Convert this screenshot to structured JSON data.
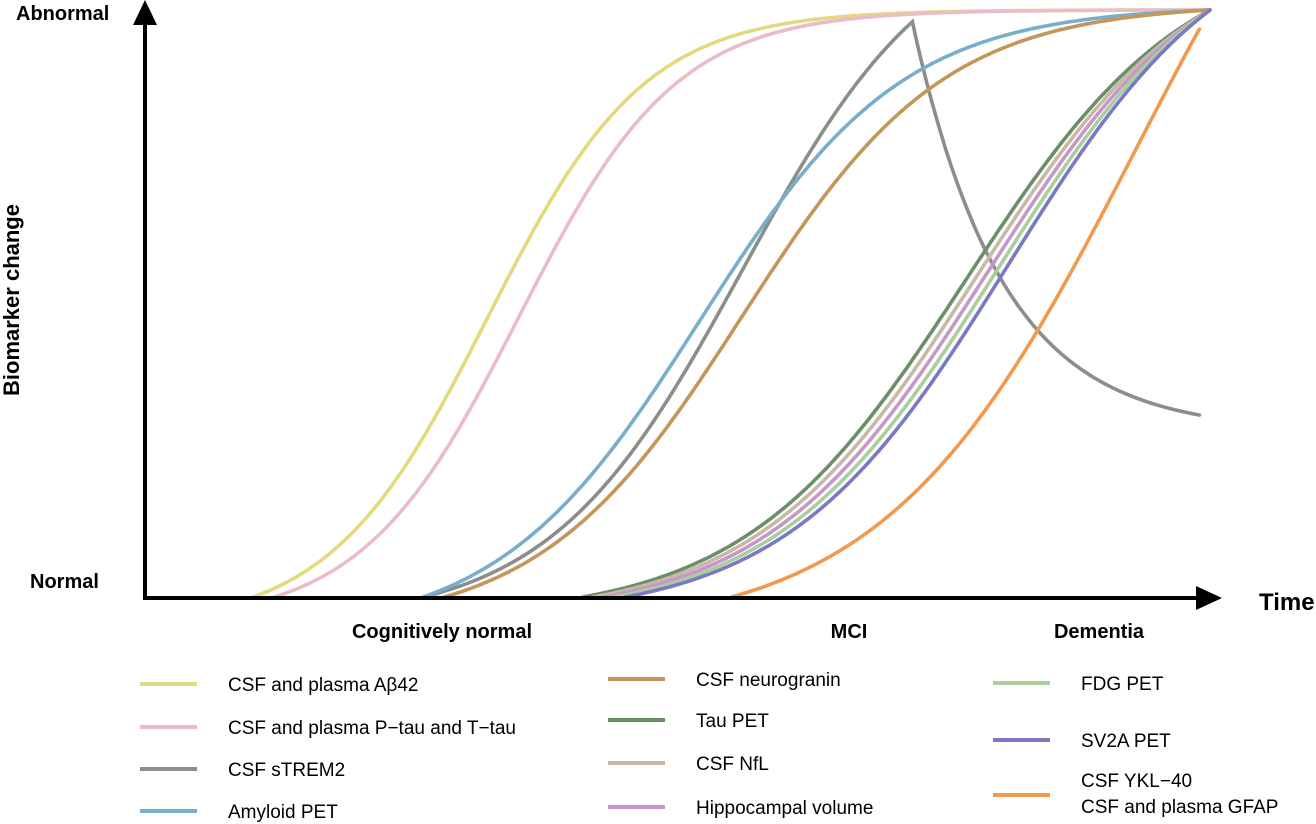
{
  "chart_data": {
    "type": "line",
    "title": "",
    "xlabel": "Time",
    "ylabel": "Biomarker change",
    "y_ticks": {
      "low": "Normal",
      "high": "Abnormal"
    },
    "stages": [
      "Cognitively normal",
      "MCI",
      "Dementia"
    ],
    "x_range": [
      0,
      1
    ],
    "y_range": [
      0,
      1
    ],
    "grid": false,
    "legend_position": "bottom",
    "series": [
      {
        "name": "CSF and plasma Aβ42",
        "color": "#e3d97f",
        "curve": "sigmoid",
        "midpoint": 0.32,
        "steepness": 13.5,
        "start": 0.1
      },
      {
        "name": "CSF and plasma P−tau and T−tau",
        "color": "#ecbcc6",
        "curve": "sigmoid",
        "midpoint": 0.35,
        "steepness": 13.5,
        "start": 0.12
      },
      {
        "name": "CSF sTREM2",
        "color": "#8a8f8c",
        "curve": "peak",
        "peak_x": 0.72,
        "peak_y": 0.98,
        "end_y": 0.31,
        "start": 0.26
      },
      {
        "name": "Amyloid PET",
        "color": "#79aecb",
        "curve": "sigmoid",
        "midpoint": 0.52,
        "steepness": 10.5,
        "start": 0.26
      },
      {
        "name": "CSF neurogranin",
        "color": "#c4965a",
        "curve": "sigmoid",
        "midpoint": 0.56,
        "steepness": 10.5,
        "start": 0.28
      },
      {
        "name": "Tau PET",
        "color": "#6b8f68",
        "curve": "sigmoid",
        "midpoint": 0.77,
        "steepness": 9.6,
        "start": 0.41
      },
      {
        "name": "CSF NfL",
        "color": "#c9b8a8",
        "curve": "sigmoid",
        "midpoint": 0.78,
        "steepness": 9.6,
        "start": 0.42
      },
      {
        "name": "Hippocampal volume",
        "color": "#c697c9",
        "curve": "sigmoid",
        "midpoint": 0.79,
        "steepness": 9.6,
        "start": 0.43
      },
      {
        "name": "FDG PET",
        "color": "#a9cf9d",
        "curve": "sigmoid",
        "midpoint": 0.8,
        "steepness": 9.6,
        "start": 0.44
      },
      {
        "name": "SV2A PET",
        "color": "#7b79c4",
        "curve": "sigmoid",
        "midpoint": 0.81,
        "steepness": 9.6,
        "start": 0.45
      },
      {
        "name": "CSF YKL−40\nCSF and plasma GFAP",
        "color": "#ef9a4f",
        "curve": "sigmoid",
        "midpoint": 0.93,
        "steepness": 8.5,
        "start": 0.55,
        "end": 0.99
      }
    ]
  }
}
